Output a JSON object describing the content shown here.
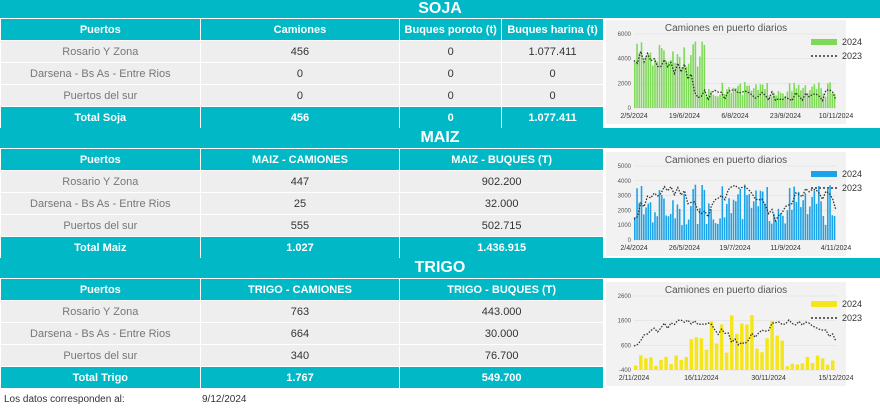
{
  "soja": {
    "title": "SOJA",
    "headers": [
      "Puertos",
      "Camiones",
      "Buques poroto (t)",
      "Buques harina (t)"
    ],
    "rows": [
      [
        "Rosario Y Zona",
        "456",
        "0",
        "1.077.411"
      ],
      [
        "Darsena - Bs As - Entre Rios",
        "0",
        "0",
        "0"
      ],
      [
        "Puertos del sur",
        "0",
        "0",
        "0"
      ]
    ],
    "total": [
      "Total Soja",
      "456",
      "0",
      "1.077.411"
    ],
    "chart": {
      "title": "Camiones en puerto diarios",
      "legend": [
        "2024",
        "2023"
      ],
      "yticks": [
        "6000",
        "4000",
        "2000",
        "0"
      ],
      "xticks": [
        "2/5/2024",
        "19/6/2024",
        "6/8/2024",
        "23/9/2024",
        "10/11/2024"
      ],
      "color": "#7ed957"
    }
  },
  "maiz": {
    "title": "MAIZ",
    "headers": [
      "Puertos",
      "MAIZ - CAMIONES",
      "MAIZ - BUQUES (T)"
    ],
    "rows": [
      [
        "Rosario Y Zona",
        "447",
        "902.200"
      ],
      [
        "Darsena - Bs As - Entre Rios",
        "25",
        "32.000"
      ],
      [
        "Puertos del sur",
        "555",
        "502.715"
      ]
    ],
    "total": [
      "Total Maiz",
      "1.027",
      "1.436.915"
    ],
    "chart": {
      "title": "Camiones en puerto diarios",
      "legend": [
        "2024",
        "2023"
      ],
      "yticks": [
        "5000",
        "4000",
        "3000",
        "2000",
        "1000",
        "0"
      ],
      "xticks": [
        "2/4/2024",
        "26/5/2024",
        "19/7/2024",
        "11/9/2024",
        "4/11/2024"
      ],
      "color": "#1aa3e8"
    }
  },
  "trigo": {
    "title": "TRIGO",
    "headers": [
      "Puertos",
      "TRIGO - CAMIONES",
      "TRIGO - BUQUES (T)"
    ],
    "rows": [
      [
        "Rosario Y Zona",
        "763",
        "443.000"
      ],
      [
        "Darsena - Bs As - Entre Rios",
        "664",
        "30.000"
      ],
      [
        "Puertos del sur",
        "340",
        "76.700"
      ]
    ],
    "total": [
      "Total Trigo",
      "1.767",
      "549.700"
    ],
    "chart": {
      "title": "Camiones en puerto diarios",
      "legend": [
        "2024",
        "2023"
      ],
      "yticks": [
        "2600",
        "1600",
        "600",
        "-400"
      ],
      "xticks": [
        "2/11/2024",
        "16/11/2024",
        "30/11/2024",
        "15/12/2024"
      ],
      "color": "#f5e61b"
    }
  },
  "footer": {
    "label": "Los datos corresponden al:",
    "date": "9/12/2024"
  }
}
